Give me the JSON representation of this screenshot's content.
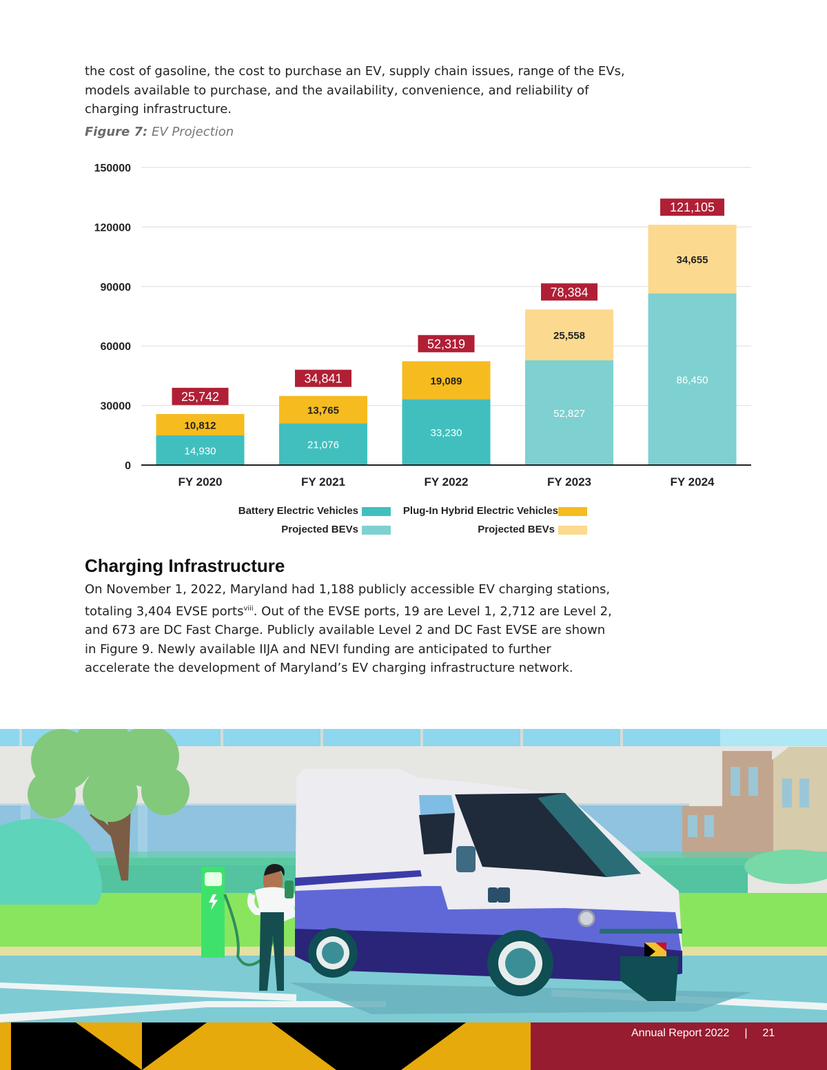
{
  "intro_text": "the cost of gasoline, the cost to purchase an EV, supply chain issues, range of the EVs, models available to purchase, and the availability, convenience, and reliability of charging infrastructure.",
  "figure": {
    "label": "Figure 7:",
    "title": "EV Projection"
  },
  "chart_data": {
    "type": "bar",
    "stacked": true,
    "categories": [
      "FY 2020",
      "FY 2021",
      "FY 2022",
      "FY 2023",
      "FY 2024"
    ],
    "ylim": [
      0,
      150000
    ],
    "yticks": [
      0,
      30000,
      60000,
      90000,
      120000,
      150000
    ],
    "grid": true,
    "series": [
      {
        "name": "Battery Electric Vehicles",
        "values": [
          14930,
          21076,
          33230,
          null,
          null
        ],
        "color": "#41bfbf"
      },
      {
        "name": "Projected BEVs",
        "values": [
          null,
          null,
          null,
          52827,
          86450
        ],
        "color": "#7fd0d0"
      },
      {
        "name": "Plug-In Hybrid Electric Vehicles",
        "values": [
          10812,
          13765,
          19089,
          null,
          null
        ],
        "color": "#f6bb1f"
      },
      {
        "name": "Projected BEVs",
        "values": [
          null,
          null,
          null,
          25558,
          34655
        ],
        "color": "#fbd98f"
      }
    ],
    "segment_labels": {
      "bottom": [
        "14,930",
        "21,076",
        "33,230",
        "52,827",
        "86,450"
      ],
      "top": [
        "10,812",
        "13,765",
        "19,089",
        "25,558",
        "34,655"
      ]
    },
    "totals": [
      25742,
      34841,
      52319,
      78384,
      121105
    ],
    "total_labels": [
      "25,742",
      "34,841",
      "52,319",
      "78,384",
      "121,105"
    ],
    "bar_heights": [
      25742,
      34841,
      52319,
      78384,
      121105
    ],
    "colors": {
      "total_badge": "#b01f35",
      "axis": "#222222",
      "grid": "#dddddd"
    },
    "legend": [
      {
        "label": "Battery Electric Vehicles",
        "color": "#41bfbf"
      },
      {
        "label": "Plug-In Hybrid Electric Vehicles",
        "color": "#f6bb1f"
      },
      {
        "label": "Projected BEVs",
        "color": "#7fd0d0"
      },
      {
        "label": "Projected BEVs",
        "color": "#fbd98f"
      }
    ],
    "legend_placement": "bottom"
  },
  "section": {
    "title": "Charging Infrastructure",
    "p1": "On November 1, 2022, Maryland had 1,188 publicly accessible EV charging stations, totaling 3,404 EVSE ports",
    "sup": "viii",
    "p2": ". Out of the EVSE ports, 19 are Level 1, 2,712 are Level 2, and 673 are DC Fast Charge. Publicly available Level 2 and DC Fast EVSE are shown in Figure 9. Newly available IIJA and NEVI funding are anticipated to further accelerate the development of Maryland’s EV charging infrastructure network."
  },
  "footer": {
    "report": "Annual Report 2022",
    "separator": "|",
    "page": "21"
  },
  "colors": {
    "maroon": "#971c30",
    "gold": "#e7aa0c",
    "black": "#000000"
  }
}
